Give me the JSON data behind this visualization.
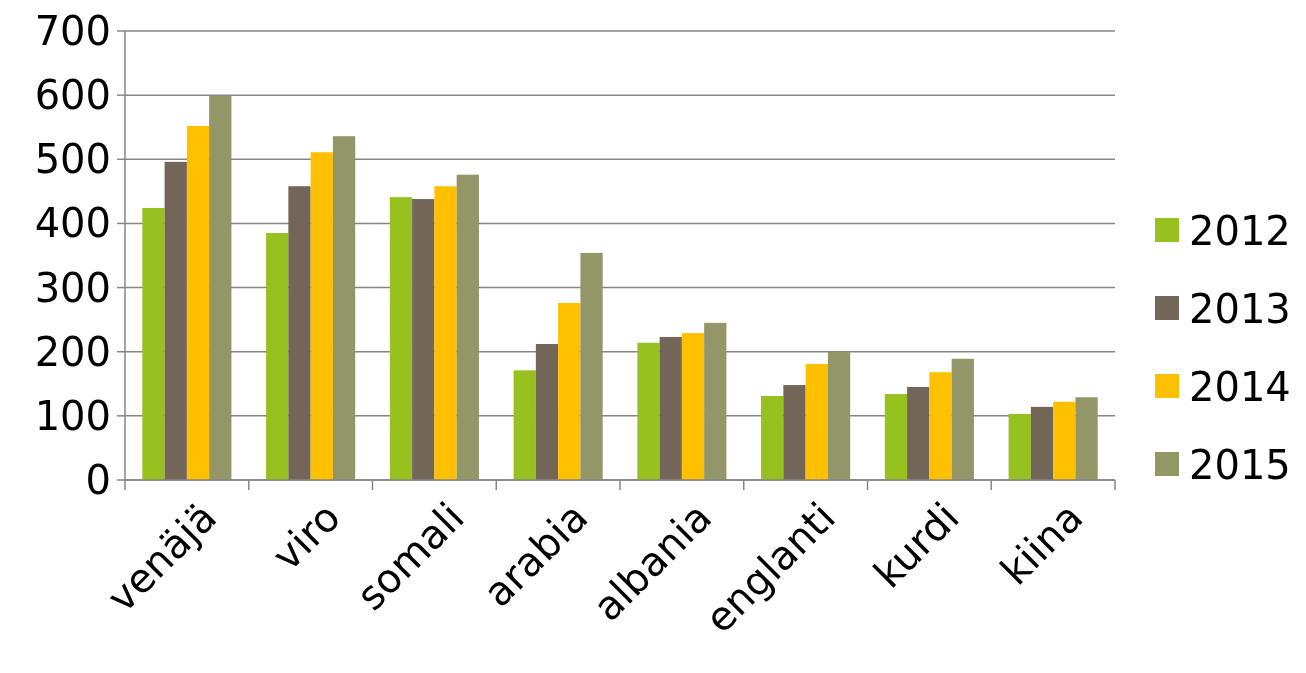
{
  "chart_data": {
    "type": "bar",
    "categories": [
      "venäjä",
      "viro",
      "somali",
      "arabia",
      "albania",
      "englanti",
      "kurdi",
      "kiina"
    ],
    "series": [
      {
        "name": "2012",
        "color": "#96c11f",
        "values": [
          424,
          385,
          441,
          171,
          214,
          131,
          134,
          103
        ]
      },
      {
        "name": "2013",
        "color": "#736658",
        "values": [
          496,
          458,
          438,
          212,
          223,
          148,
          145,
          114
        ]
      },
      {
        "name": "2014",
        "color": "#ffc000",
        "values": [
          552,
          511,
          458,
          276,
          229,
          181,
          168,
          122
        ]
      },
      {
        "name": "2015",
        "color": "#939667",
        "values": [
          599,
          536,
          476,
          354,
          245,
          200,
          189,
          129
        ]
      }
    ],
    "ylim": [
      0,
      700
    ],
    "yticks": [
      0,
      100,
      200,
      300,
      400,
      500,
      600,
      700
    ],
    "grid": "y",
    "legend": "right"
  }
}
